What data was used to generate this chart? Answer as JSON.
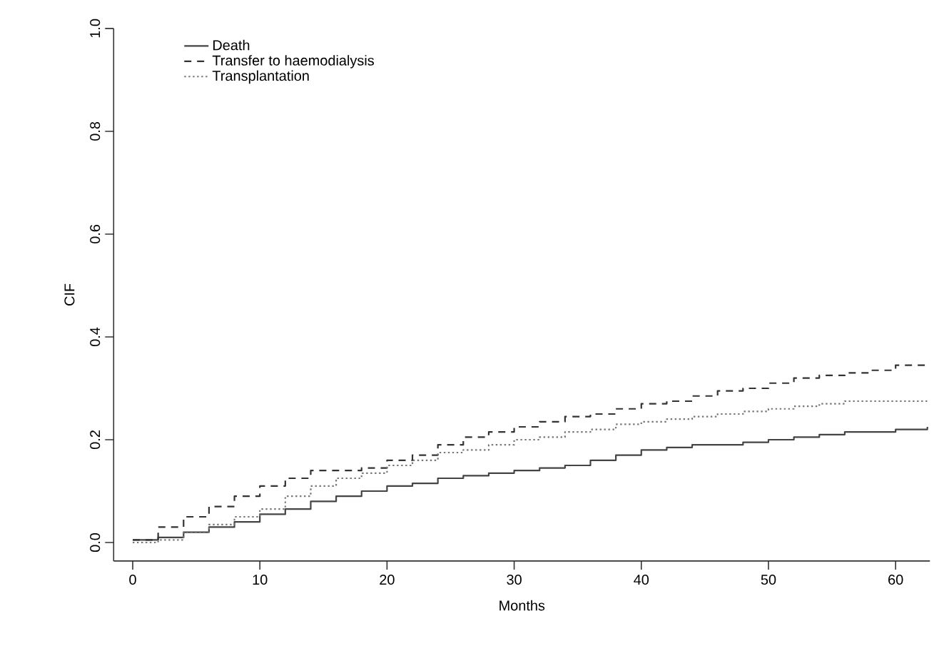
{
  "chart_data": {
    "type": "step",
    "xlabel": "Months",
    "ylabel": "CIF",
    "xlim": [
      -1.5,
      62.7
    ],
    "ylim": [
      -0.036,
      1.0
    ],
    "xticks": [
      0,
      10,
      20,
      30,
      40,
      50,
      60
    ],
    "yticks": [
      {
        "value": 0,
        "label": "0.0"
      },
      {
        "value": 0.2,
        "label": "0.2"
      },
      {
        "value": 0.4,
        "label": "0.4"
      },
      {
        "value": 0.6,
        "label": "0.6"
      },
      {
        "value": 0.8,
        "label": "0.8"
      },
      {
        "value": 1,
        "label": "1.0"
      }
    ],
    "legend": "top left",
    "grid": false,
    "x": [
      0,
      2,
      4,
      6,
      8,
      10,
      12,
      14,
      16,
      18,
      20,
      22,
      24,
      26,
      28,
      30,
      32,
      34,
      36,
      38,
      40,
      42,
      44,
      46,
      48,
      50,
      52,
      54,
      56,
      58,
      60,
      62.5
    ],
    "series": [
      {
        "name": "Death",
        "color": "#444444",
        "line_style": "solid",
        "values": [
          0.005,
          0.01,
          0.02,
          0.03,
          0.04,
          0.055,
          0.065,
          0.08,
          0.09,
          0.1,
          0.11,
          0.115,
          0.125,
          0.13,
          0.135,
          0.14,
          0.145,
          0.15,
          0.16,
          0.17,
          0.18,
          0.185,
          0.19,
          0.19,
          0.195,
          0.2,
          0.205,
          0.21,
          0.215,
          0.215,
          0.22,
          0.225
        ]
      },
      {
        "name": "Transfer to haemodialysis",
        "color": "#333333",
        "line_style": "dashed",
        "values": [
          0.005,
          0.03,
          0.05,
          0.07,
          0.09,
          0.11,
          0.125,
          0.14,
          0.14,
          0.145,
          0.16,
          0.17,
          0.19,
          0.205,
          0.215,
          0.225,
          0.235,
          0.245,
          0.25,
          0.26,
          0.27,
          0.275,
          0.285,
          0.295,
          0.3,
          0.31,
          0.32,
          0.325,
          0.33,
          0.335,
          0.345,
          0.35
        ]
      },
      {
        "name": "Transplantation",
        "color": "#777777",
        "line_style": "dotted",
        "values": [
          0.0,
          0.005,
          0.02,
          0.035,
          0.05,
          0.065,
          0.09,
          0.11,
          0.125,
          0.135,
          0.15,
          0.16,
          0.175,
          0.18,
          0.19,
          0.2,
          0.205,
          0.215,
          0.22,
          0.23,
          0.235,
          0.24,
          0.245,
          0.25,
          0.255,
          0.26,
          0.265,
          0.27,
          0.275,
          0.275,
          0.275,
          0.277
        ]
      }
    ]
  }
}
